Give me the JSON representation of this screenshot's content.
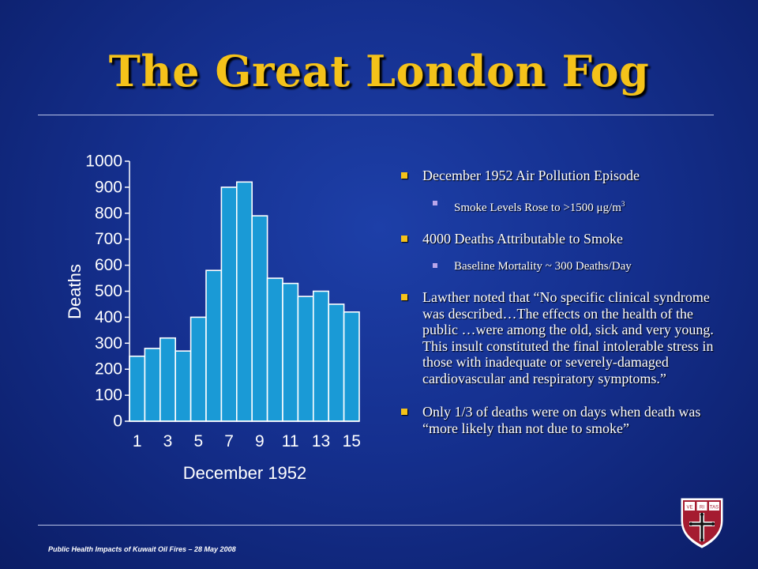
{
  "title": "The Great London Fog",
  "chart_data": {
    "type": "bar",
    "x": [
      1,
      2,
      3,
      4,
      5,
      6,
      7,
      8,
      9,
      10,
      11,
      12,
      13,
      14,
      15
    ],
    "x_tick_labels": [
      "1",
      "3",
      "5",
      "7",
      "9",
      "11",
      "13",
      "15"
    ],
    "values": [
      250,
      280,
      320,
      270,
      400,
      580,
      900,
      920,
      790,
      550,
      530,
      480,
      500,
      450,
      420
    ],
    "xlabel": "December 1952",
    "ylabel": "Deaths",
    "ylim": [
      0,
      1000
    ],
    "y_ticks": [
      0,
      100,
      200,
      300,
      400,
      500,
      600,
      700,
      800,
      900,
      1000
    ],
    "bar_color": "#1a9ad6",
    "grid": false
  },
  "bullets": [
    {
      "text": "December 1952 Air Pollution Episode",
      "sub": {
        "text": "Smoke Levels Rose to >1500 μg/m",
        "sup": "3"
      }
    },
    {
      "text": "4000 Deaths Attributable to Smoke",
      "sub": {
        "text": "Baseline Mortality ~ 300 Deaths/Day"
      }
    },
    {
      "text": "Lawther noted that “No specific clinical syndrome was described…The effects on the health of the public …were among the old, sick and very young. This insult constituted the final intolerable stress in those with inadequate or severely-damaged cardiovascular and respiratory symptoms.”"
    },
    {
      "text": "Only 1/3 of deaths were on days when death was “more likely than not due to smoke”"
    }
  ],
  "footer": "Public Health Impacts of Kuwait Oil Fires – 28 May 2008",
  "logo": {
    "icon": "harvard-shield-icon",
    "book_labels": [
      "VE",
      "RI",
      "TAS"
    ]
  },
  "colors": {
    "title": "#f4c21a",
    "background": "#15308f",
    "bullet": "#f4c21a",
    "sub_bullet": "#b9a6ea",
    "shield": "#a51c30"
  }
}
